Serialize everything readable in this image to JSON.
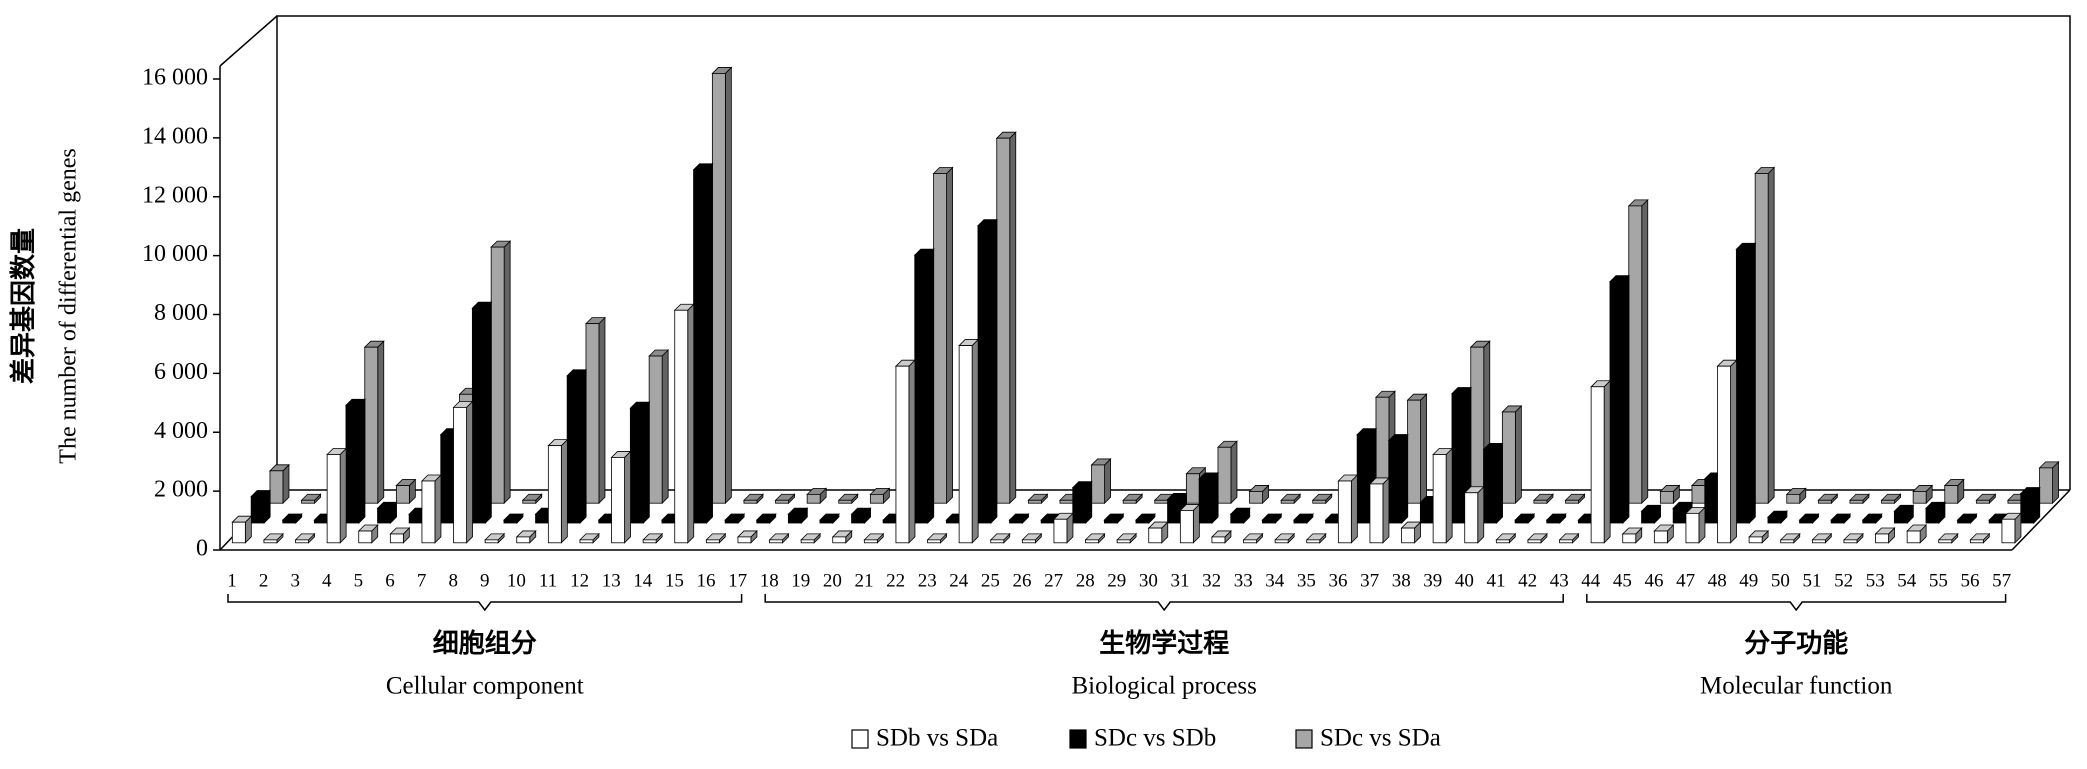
{
  "chart_data": {
    "type": "bar3d",
    "y_label": "差异基因数量",
    "y_label_en": "The number of differential genes",
    "categories": [
      "1",
      "2",
      "3",
      "4",
      "5",
      "6",
      "7",
      "8",
      "9",
      "10",
      "11",
      "12",
      "13",
      "14",
      "15",
      "16",
      "17",
      "18",
      "19",
      "20",
      "21",
      "22",
      "23",
      "24",
      "25",
      "26",
      "27",
      "28",
      "29",
      "30",
      "31",
      "32",
      "33",
      "34",
      "35",
      "36",
      "37",
      "38",
      "39",
      "40",
      "41",
      "42",
      "43",
      "44",
      "45",
      "46",
      "47",
      "48",
      "49",
      "50",
      "51",
      "52",
      "53",
      "54",
      "55",
      "56",
      "57"
    ],
    "series": [
      {
        "name": "SDb vs SDa",
        "color": "#ffffff",
        "values": [
          700,
          100,
          100,
          3000,
          400,
          300,
          2100,
          4600,
          100,
          200,
          3300,
          100,
          2900,
          100,
          7900,
          100,
          200,
          100,
          100,
          200,
          100,
          6000,
          100,
          6700,
          100,
          100,
          800,
          100,
          100,
          500,
          1100,
          200,
          100,
          100,
          100,
          2100,
          2000,
          500,
          3000,
          1700,
          100,
          100,
          100,
          5300,
          300,
          400,
          1000,
          6000,
          200,
          100,
          100,
          100,
          300,
          400,
          100,
          100,
          800
        ]
      },
      {
        "name": "SDc vs SDb",
        "color": "#000000",
        "values": [
          900,
          100,
          100,
          4000,
          500,
          300,
          3000,
          7300,
          100,
          300,
          5000,
          100,
          3900,
          100,
          12000,
          100,
          100,
          300,
          100,
          300,
          100,
          9100,
          100,
          10100,
          100,
          100,
          1200,
          100,
          100,
          800,
          1500,
          300,
          100,
          100,
          100,
          3000,
          2800,
          700,
          4400,
          2500,
          100,
          100,
          100,
          8200,
          400,
          500,
          1500,
          9300,
          200,
          100,
          100,
          100,
          400,
          500,
          100,
          100,
          1000
        ]
      },
      {
        "name": "SDc vs SDa",
        "color": "#a6a6a6",
        "values": [
          1100,
          100,
          100,
          5300,
          600,
          300,
          3700,
          8700,
          100,
          100,
          6100,
          100,
          5000,
          100,
          14600,
          100,
          100,
          300,
          100,
          300,
          100,
          11200,
          100,
          12400,
          100,
          100,
          1300,
          100,
          100,
          1000,
          1900,
          400,
          100,
          100,
          100,
          3600,
          3500,
          800,
          5300,
          3100,
          100,
          100,
          100,
          10100,
          400,
          600,
          1600,
          11200,
          300,
          100,
          100,
          100,
          400,
          600,
          100,
          100,
          1200
        ]
      }
    ],
    "groups": [
      {
        "label": "细胞组分",
        "label_en": "Cellular component"
      },
      {
        "label": "生物学过程",
        "label_en": "Biological process"
      },
      {
        "label": "分子功能",
        "label_en": "Molecular function"
      }
    ],
    "ylim": [
      0,
      16000
    ],
    "yticks": [
      0,
      {
        "value": 2000,
        "label": "2 000"
      },
      {
        "value": 4000,
        "label": "4 000"
      },
      {
        "value": 6000,
        "label": "6 000"
      },
      {
        "value": 8000,
        "label": "8 000"
      },
      {
        "value": 10000,
        "label": "10 000"
      },
      {
        "value": 12000,
        "label": "12 000"
      },
      {
        "value": 14000,
        "label": "14 000"
      },
      {
        "value": 16000,
        "label": "16 000"
      }
    ],
    "legend": "bottom"
  }
}
